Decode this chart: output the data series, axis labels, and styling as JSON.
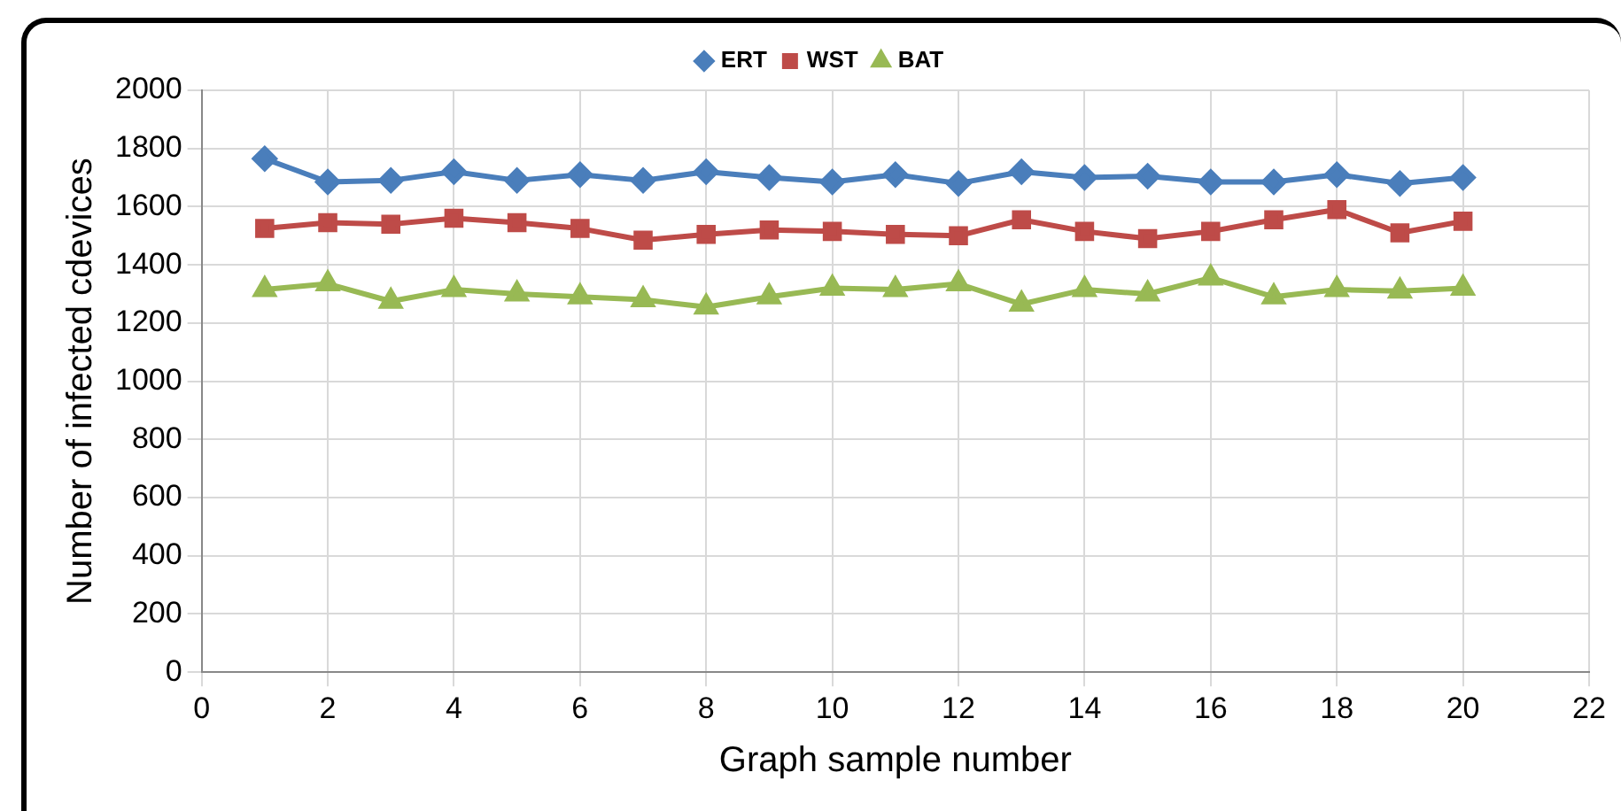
{
  "chart_data": {
    "type": "line",
    "xlabel": "Graph sample number",
    "ylabel": "Number of infected cdevices",
    "x": [
      1,
      2,
      3,
      4,
      5,
      6,
      7,
      8,
      9,
      10,
      11,
      12,
      13,
      14,
      15,
      16,
      17,
      18,
      19,
      20
    ],
    "series": [
      {
        "name": "ERT",
        "color": "#4a7ebb",
        "marker": "diamond",
        "values": [
          1765,
          1685,
          1690,
          1720,
          1690,
          1710,
          1690,
          1720,
          1700,
          1685,
          1710,
          1680,
          1720,
          1700,
          1705,
          1685,
          1685,
          1710,
          1680,
          1700
        ]
      },
      {
        "name": "WST",
        "color": "#be4b48",
        "marker": "square",
        "values": [
          1525,
          1545,
          1540,
          1560,
          1545,
          1525,
          1485,
          1505,
          1520,
          1515,
          1505,
          1500,
          1555,
          1515,
          1490,
          1515,
          1555,
          1590,
          1510,
          1550
        ]
      },
      {
        "name": "BAT",
        "color": "#98b954",
        "marker": "triangle",
        "values": [
          1315,
          1335,
          1275,
          1315,
          1300,
          1290,
          1280,
          1255,
          1290,
          1320,
          1315,
          1335,
          1265,
          1315,
          1300,
          1355,
          1290,
          1315,
          1310,
          1320
        ]
      }
    ],
    "xlim": [
      0,
      22
    ],
    "xticks": [
      0,
      2,
      4,
      6,
      8,
      10,
      12,
      14,
      16,
      18,
      20,
      22
    ],
    "ylim": [
      0,
      2000
    ],
    "yticks": [
      0,
      200,
      400,
      600,
      800,
      1000,
      1200,
      1400,
      1600,
      1800,
      2000
    ],
    "grid": true,
    "legend": "top"
  }
}
